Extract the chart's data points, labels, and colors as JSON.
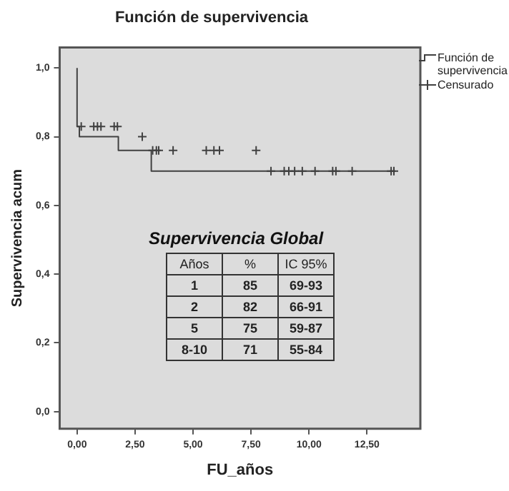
{
  "chart_data": {
    "type": "step",
    "title": "Función de supervivencia",
    "xlabel": "FU_años",
    "ylabel": "Supervivencia acum",
    "xlim": [
      -0.75,
      14.8
    ],
    "ylim": [
      -0.05,
      1.06
    ],
    "xticks": [
      {
        "value": 0,
        "label": "0,00"
      },
      {
        "value": 2.5,
        "label": "2,50"
      },
      {
        "value": 5,
        "label": "5,00"
      },
      {
        "value": 7.5,
        "label": "7,50"
      },
      {
        "value": 10,
        "label": "10,00"
      },
      {
        "value": 12.5,
        "label": "12,50"
      }
    ],
    "yticks": [
      {
        "value": 0,
        "label": "0,0"
      },
      {
        "value": 0.2,
        "label": "0,2"
      },
      {
        "value": 0.4,
        "label": "0,4"
      },
      {
        "value": 0.6,
        "label": "0,6"
      },
      {
        "value": 0.8,
        "label": "0,8"
      },
      {
        "value": 1.0,
        "label": "1,0"
      }
    ],
    "grid": false,
    "legend": "top right",
    "series": [
      {
        "name": "Función de supervivencia",
        "color": "#404040",
        "marker": "none",
        "x": [
          0,
          0.1,
          1.78,
          3.2,
          7.78,
          13.7
        ],
        "values": [
          1.0,
          0.83,
          0.8,
          0.76,
          0.7,
          0.7
        ]
      },
      {
        "name": "Censurado",
        "type": "scatter",
        "color": "#404040",
        "marker": "cross",
        "x": [
          0.18,
          0.72,
          0.88,
          1.03,
          1.6,
          1.74,
          2.81,
          3.26,
          3.42,
          3.52,
          4.14,
          5.57,
          5.9,
          6.14,
          7.72,
          8.36,
          8.93,
          9.13,
          9.38,
          9.71,
          10.26,
          11.02,
          11.16,
          11.86,
          13.54,
          13.66
        ],
        "values": [
          0.83,
          0.83,
          0.83,
          0.83,
          0.83,
          0.83,
          0.8,
          0.76,
          0.76,
          0.76,
          0.76,
          0.76,
          0.76,
          0.76,
          0.76,
          0.7,
          0.7,
          0.7,
          0.7,
          0.7,
          0.7,
          0.7,
          0.7,
          0.7,
          0.7,
          0.7
        ]
      }
    ],
    "annotations": [
      "Supervivencia Global",
      "Años",
      "%",
      "IC 95%",
      "1",
      "85",
      "69-93",
      "2",
      "82",
      "66-91",
      "5",
      "75",
      "59-87",
      "8-10",
      "71",
      "55-84"
    ]
  }
}
